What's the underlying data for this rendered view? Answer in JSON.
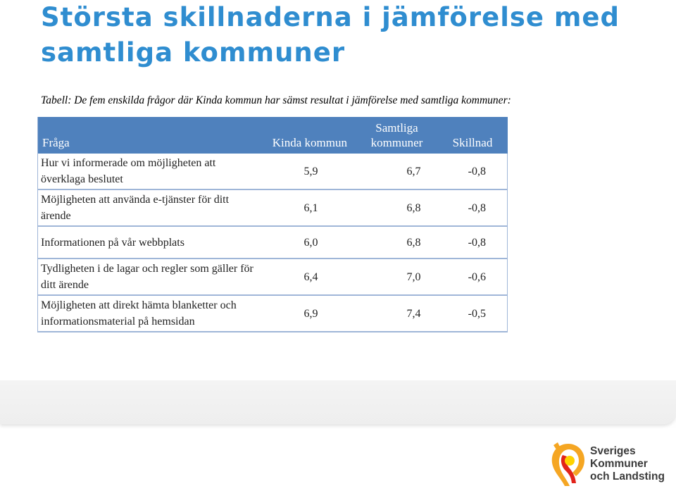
{
  "slide": {
    "title": "Största skillnaderna i jämförelse med samtliga kommuner",
    "caption": "Tabell: De fem enskilda frågor där Kinda kommun har sämst resultat i jämförelse med samtliga kommuner:"
  },
  "table": {
    "headers": {
      "question": "Fråga",
      "kinda": "Kinda kommun",
      "all_line1": "Samtliga",
      "all_line2": "kommuner",
      "diff": "Skillnad"
    },
    "rows": [
      {
        "question": "Hur vi informerade om möjligheten att överklaga beslutet",
        "kinda": "5,9",
        "all": "6,7",
        "diff": "-0,8"
      },
      {
        "question": "Möjligheten att använda e-tjänster för ditt ärende",
        "kinda": "6,1",
        "all": "6,8",
        "diff": "-0,8"
      },
      {
        "question": "Informationen på vår webbplats",
        "kinda": "6,0",
        "all": "6,8",
        "diff": "-0,8"
      },
      {
        "question": "Tydligheten i de lagar och regler som gäller för ditt ärende",
        "kinda": "6,4",
        "all": "7,0",
        "diff": "-0,6"
      },
      {
        "question": "Möjligheten att direkt hämta blanketter och informationsmaterial på hemsidan",
        "kinda": "6,9",
        "all": "7,4",
        "diff": "-0,5"
      }
    ]
  },
  "logo": {
    "line1": "Sveriges",
    "line2": "Kommuner",
    "line3": "och Landsting",
    "colors": {
      "orange": "#f5a623",
      "red": "#e2231a",
      "yellow": "#ffd200"
    }
  },
  "colors": {
    "title": "#2f8dd0",
    "header_bg": "#4f81bd",
    "row_border": "#9fb6d8"
  }
}
